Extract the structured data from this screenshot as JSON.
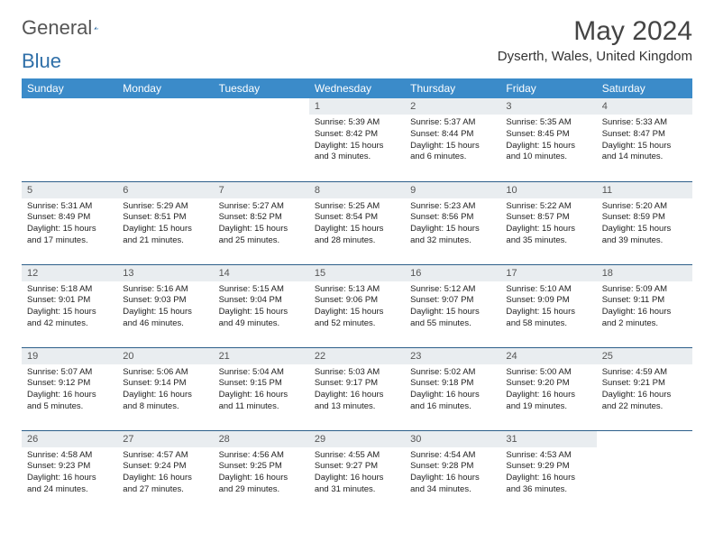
{
  "brand": {
    "general": "General",
    "blue": "Blue"
  },
  "title": "May 2024",
  "location": "Dyserth, Wales, United Kingdom",
  "colors": {
    "header_bg": "#3b8bc9",
    "header_text": "#ffffff",
    "daynum_bg": "#e9edf0",
    "row_border": "#2d5f8a",
    "logo_blue": "#2f6fa8"
  },
  "weekdays": [
    "Sunday",
    "Monday",
    "Tuesday",
    "Wednesday",
    "Thursday",
    "Friday",
    "Saturday"
  ],
  "weeks": [
    [
      null,
      null,
      null,
      {
        "n": "1",
        "sr": "5:39 AM",
        "ss": "8:42 PM",
        "dl": "15 hours and 3 minutes."
      },
      {
        "n": "2",
        "sr": "5:37 AM",
        "ss": "8:44 PM",
        "dl": "15 hours and 6 minutes."
      },
      {
        "n": "3",
        "sr": "5:35 AM",
        "ss": "8:45 PM",
        "dl": "15 hours and 10 minutes."
      },
      {
        "n": "4",
        "sr": "5:33 AM",
        "ss": "8:47 PM",
        "dl": "15 hours and 14 minutes."
      }
    ],
    [
      {
        "n": "5",
        "sr": "5:31 AM",
        "ss": "8:49 PM",
        "dl": "15 hours and 17 minutes."
      },
      {
        "n": "6",
        "sr": "5:29 AM",
        "ss": "8:51 PM",
        "dl": "15 hours and 21 minutes."
      },
      {
        "n": "7",
        "sr": "5:27 AM",
        "ss": "8:52 PM",
        "dl": "15 hours and 25 minutes."
      },
      {
        "n": "8",
        "sr": "5:25 AM",
        "ss": "8:54 PM",
        "dl": "15 hours and 28 minutes."
      },
      {
        "n": "9",
        "sr": "5:23 AM",
        "ss": "8:56 PM",
        "dl": "15 hours and 32 minutes."
      },
      {
        "n": "10",
        "sr": "5:22 AM",
        "ss": "8:57 PM",
        "dl": "15 hours and 35 minutes."
      },
      {
        "n": "11",
        "sr": "5:20 AM",
        "ss": "8:59 PM",
        "dl": "15 hours and 39 minutes."
      }
    ],
    [
      {
        "n": "12",
        "sr": "5:18 AM",
        "ss": "9:01 PM",
        "dl": "15 hours and 42 minutes."
      },
      {
        "n": "13",
        "sr": "5:16 AM",
        "ss": "9:03 PM",
        "dl": "15 hours and 46 minutes."
      },
      {
        "n": "14",
        "sr": "5:15 AM",
        "ss": "9:04 PM",
        "dl": "15 hours and 49 minutes."
      },
      {
        "n": "15",
        "sr": "5:13 AM",
        "ss": "9:06 PM",
        "dl": "15 hours and 52 minutes."
      },
      {
        "n": "16",
        "sr": "5:12 AM",
        "ss": "9:07 PM",
        "dl": "15 hours and 55 minutes."
      },
      {
        "n": "17",
        "sr": "5:10 AM",
        "ss": "9:09 PM",
        "dl": "15 hours and 58 minutes."
      },
      {
        "n": "18",
        "sr": "5:09 AM",
        "ss": "9:11 PM",
        "dl": "16 hours and 2 minutes."
      }
    ],
    [
      {
        "n": "19",
        "sr": "5:07 AM",
        "ss": "9:12 PM",
        "dl": "16 hours and 5 minutes."
      },
      {
        "n": "20",
        "sr": "5:06 AM",
        "ss": "9:14 PM",
        "dl": "16 hours and 8 minutes."
      },
      {
        "n": "21",
        "sr": "5:04 AM",
        "ss": "9:15 PM",
        "dl": "16 hours and 11 minutes."
      },
      {
        "n": "22",
        "sr": "5:03 AM",
        "ss": "9:17 PM",
        "dl": "16 hours and 13 minutes."
      },
      {
        "n": "23",
        "sr": "5:02 AM",
        "ss": "9:18 PM",
        "dl": "16 hours and 16 minutes."
      },
      {
        "n": "24",
        "sr": "5:00 AM",
        "ss": "9:20 PM",
        "dl": "16 hours and 19 minutes."
      },
      {
        "n": "25",
        "sr": "4:59 AM",
        "ss": "9:21 PM",
        "dl": "16 hours and 22 minutes."
      }
    ],
    [
      {
        "n": "26",
        "sr": "4:58 AM",
        "ss": "9:23 PM",
        "dl": "16 hours and 24 minutes."
      },
      {
        "n": "27",
        "sr": "4:57 AM",
        "ss": "9:24 PM",
        "dl": "16 hours and 27 minutes."
      },
      {
        "n": "28",
        "sr": "4:56 AM",
        "ss": "9:25 PM",
        "dl": "16 hours and 29 minutes."
      },
      {
        "n": "29",
        "sr": "4:55 AM",
        "ss": "9:27 PM",
        "dl": "16 hours and 31 minutes."
      },
      {
        "n": "30",
        "sr": "4:54 AM",
        "ss": "9:28 PM",
        "dl": "16 hours and 34 minutes."
      },
      {
        "n": "31",
        "sr": "4:53 AM",
        "ss": "9:29 PM",
        "dl": "16 hours and 36 minutes."
      },
      null
    ]
  ],
  "labels": {
    "sunrise": "Sunrise: ",
    "sunset": "Sunset: ",
    "daylight": "Daylight: "
  }
}
